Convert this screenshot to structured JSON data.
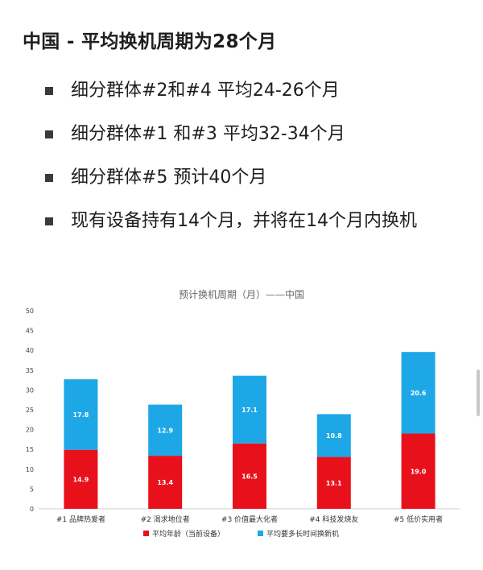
{
  "heading": "中国 - 平均换机周期为28个月",
  "bullets": [
    "细分群体#2和#4 平均24-26个月",
    "细分群体#1 和#3 平均32-34个月",
    "细分群体#5 预计40个月",
    "现有设备持有14个月，并将在14个月内换机"
  ],
  "chart_data": {
    "type": "bar",
    "stacked": true,
    "title": "预计换机周期（月）——中国",
    "categories": [
      "#1 品牌热爱者",
      "#2 渴求地位者",
      "#3 价值最大化者",
      "#4 科技发烧友",
      "#5 低价实用者"
    ],
    "series": [
      {
        "name": "平均年龄（当前设备）",
        "color": "#e8111b",
        "values": [
          14.9,
          13.4,
          16.5,
          13.1,
          19.0
        ],
        "labels": [
          "14.9",
          "13.4",
          "16.5",
          "13.1",
          "19.0"
        ]
      },
      {
        "name": "平均要多长时间换新机",
        "color": "#1ea7e6",
        "values": [
          17.8,
          12.9,
          17.1,
          10.8,
          20.6
        ],
        "labels": [
          "17.8",
          "12.9",
          "17.1",
          "10.8",
          "20.6"
        ]
      }
    ],
    "ylim": [
      0,
      50
    ],
    "yticks": [
      0,
      5,
      10,
      15,
      20,
      25,
      30,
      35,
      40,
      45,
      50
    ],
    "grid": false,
    "legend": "bottom"
  }
}
